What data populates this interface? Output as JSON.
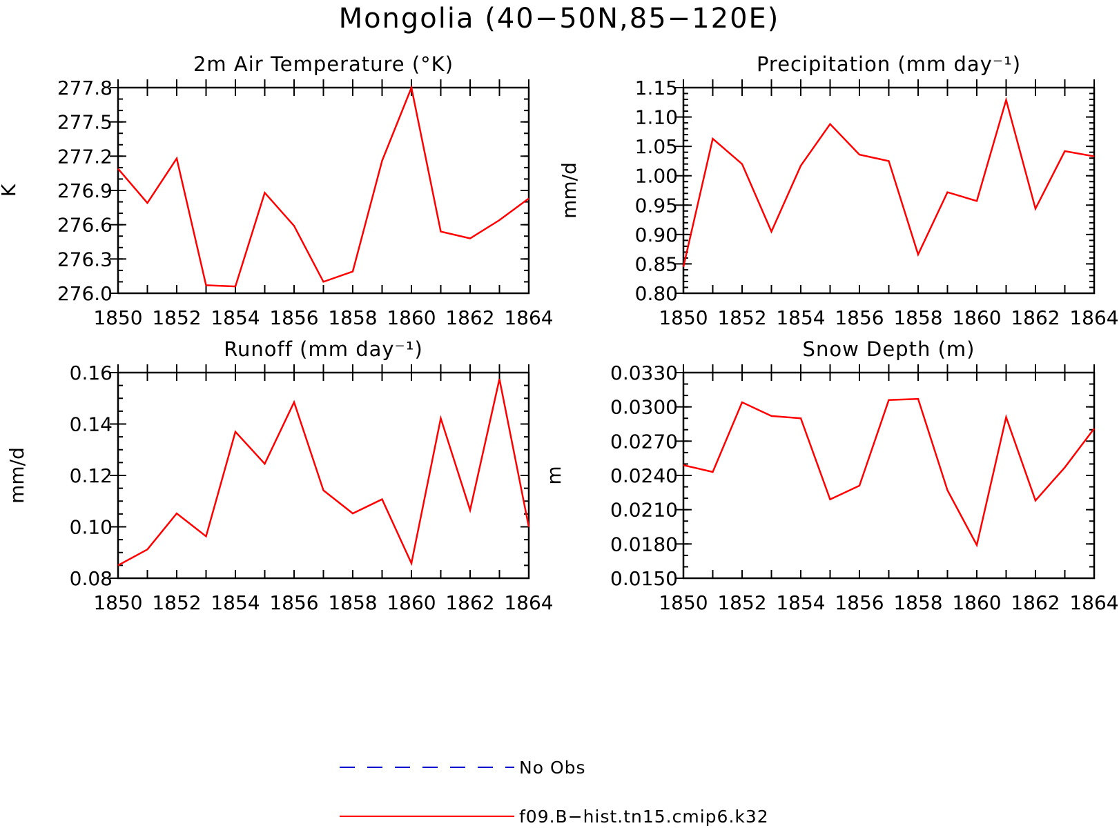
{
  "figure": {
    "title": "Mongolia (40−50N,85−120E)"
  },
  "legend": {
    "items": [
      {
        "label": "No Obs",
        "color": "#0000cc",
        "dash": "dashed"
      },
      {
        "label": "f09.B−hist.tn15.cmip6.k32",
        "color": "#ff0000",
        "dash": "solid"
      }
    ]
  },
  "chart_data": [
    {
      "type": "line",
      "title": "2m Air Temperature (°K)",
      "xlabel": "",
      "ylabel": "K",
      "xlim": [
        1850,
        1864
      ],
      "ylim": [
        276.0,
        277.8
      ],
      "xticks": [
        1850,
        1852,
        1854,
        1856,
        1858,
        1860,
        1862,
        1864
      ],
      "xtick_labels": [
        "1850",
        "1852",
        "1854",
        "1856",
        "1858",
        "1860",
        "1862",
        "1864"
      ],
      "yticks": [
        276.0,
        276.3,
        276.6,
        276.9,
        277.2,
        277.5,
        277.8
      ],
      "ytick_labels": [
        "276.0",
        "276.3",
        "276.6",
        "276.9",
        "277.2",
        "277.5",
        "277.8"
      ],
      "y_minor_step": 0.1,
      "x": [
        1850,
        1851,
        1852,
        1853,
        1854,
        1855,
        1856,
        1857,
        1858,
        1859,
        1860,
        1861,
        1862,
        1863,
        1864
      ],
      "series": [
        {
          "color": "#ff0000",
          "values": [
            277.09,
            276.79,
            277.18,
            276.07,
            276.06,
            276.88,
            276.59,
            276.1,
            276.19,
            277.16,
            277.8,
            276.54,
            276.48,
            276.64,
            276.83
          ]
        }
      ]
    },
    {
      "type": "line",
      "title": "Precipitation (mm day⁻¹)",
      "xlabel": "",
      "ylabel": "mm/d",
      "xlim": [
        1850,
        1864
      ],
      "ylim": [
        0.8,
        1.15
      ],
      "xticks": [
        1850,
        1852,
        1854,
        1856,
        1858,
        1860,
        1862,
        1864
      ],
      "xtick_labels": [
        "1850",
        "1852",
        "1854",
        "1856",
        "1858",
        "1860",
        "1862",
        "1864"
      ],
      "yticks": [
        0.8,
        0.85,
        0.9,
        0.95,
        1.0,
        1.05,
        1.1,
        1.15
      ],
      "ytick_labels": [
        "0.80",
        "0.85",
        "0.90",
        "0.95",
        "1.00",
        "1.05",
        "1.10",
        "1.15"
      ],
      "y_minor_step": 0.01,
      "x": [
        1850,
        1851,
        1852,
        1853,
        1854,
        1855,
        1856,
        1857,
        1858,
        1859,
        1860,
        1861,
        1862,
        1863,
        1864
      ],
      "series": [
        {
          "color": "#ff0000",
          "values": [
            0.845,
            1.063,
            1.02,
            0.905,
            1.017,
            1.088,
            1.036,
            1.025,
            0.866,
            0.972,
            0.957,
            1.129,
            0.944,
            1.042,
            1.033
          ]
        }
      ]
    },
    {
      "type": "line",
      "title": "Runoff (mm day⁻¹)",
      "xlabel": "",
      "ylabel": "mm/d",
      "xlim": [
        1850,
        1864
      ],
      "ylim": [
        0.08,
        0.16
      ],
      "xticks": [
        1850,
        1852,
        1854,
        1856,
        1858,
        1860,
        1862,
        1864
      ],
      "xtick_labels": [
        "1850",
        "1852",
        "1854",
        "1856",
        "1858",
        "1860",
        "1862",
        "1864"
      ],
      "yticks": [
        0.08,
        0.1,
        0.12,
        0.14,
        0.16
      ],
      "ytick_labels": [
        "0.08",
        "0.10",
        "0.12",
        "0.14",
        "0.16"
      ],
      "y_minor_step": 0.005,
      "x": [
        1850,
        1851,
        1852,
        1853,
        1854,
        1855,
        1856,
        1857,
        1858,
        1859,
        1860,
        1861,
        1862,
        1863,
        1864
      ],
      "series": [
        {
          "color": "#ff0000",
          "values": [
            0.085,
            0.0912,
            0.1052,
            0.0963,
            0.137,
            0.1245,
            0.1485,
            0.1142,
            0.1052,
            0.1107,
            0.0858,
            0.1422,
            0.1065,
            0.1575,
            0.1
          ]
        }
      ]
    },
    {
      "type": "line",
      "title": "Snow Depth (m)",
      "xlabel": "",
      "ylabel": "m",
      "xlim": [
        1850,
        1864
      ],
      "ylim": [
        0.015,
        0.033
      ],
      "xticks": [
        1850,
        1852,
        1854,
        1856,
        1858,
        1860,
        1862,
        1864
      ],
      "xtick_labels": [
        "1850",
        "1852",
        "1854",
        "1856",
        "1858",
        "1860",
        "1862",
        "1864"
      ],
      "yticks": [
        0.015,
        0.018,
        0.021,
        0.024,
        0.027,
        0.03,
        0.033
      ],
      "ytick_labels": [
        "0.0150",
        "0.0180",
        "0.0210",
        "0.0240",
        "0.0270",
        "0.0300",
        "0.0330"
      ],
      "y_minor_step": 0.001,
      "x": [
        1850,
        1851,
        1852,
        1853,
        1854,
        1855,
        1856,
        1857,
        1858,
        1859,
        1860,
        1861,
        1862,
        1863,
        1864
      ],
      "series": [
        {
          "color": "#ff0000",
          "values": [
            0.0249,
            0.0243,
            0.0304,
            0.0292,
            0.029,
            0.0219,
            0.0231,
            0.0306,
            0.0307,
            0.0227,
            0.0179,
            0.0291,
            0.0218,
            0.0247,
            0.0281
          ]
        }
      ]
    }
  ]
}
